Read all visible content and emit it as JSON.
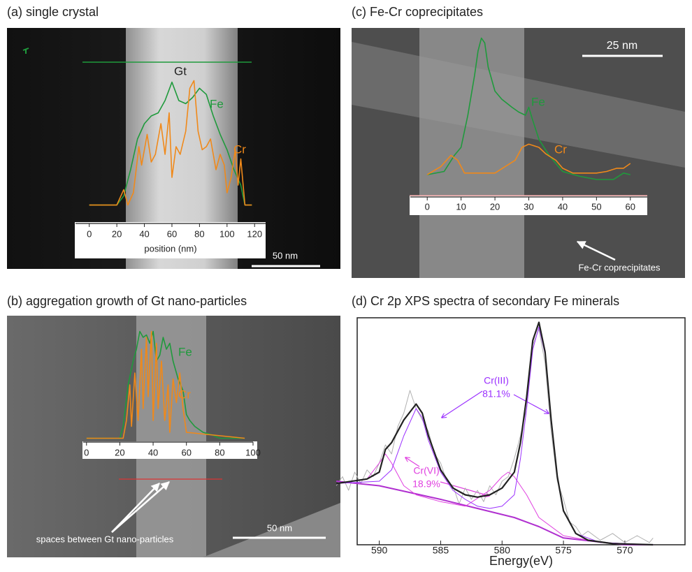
{
  "chart_data": [
    {
      "type": "line",
      "title": "(a) single crystal",
      "x_label": "position (nm)",
      "scale_bar": "50 nm",
      "annotations": [
        "Gt"
      ],
      "xlim": [
        -10,
        128
      ],
      "ylim": [
        0,
        100
      ],
      "xticks": [
        0,
        20,
        40,
        60,
        80,
        100,
        120
      ],
      "series": [
        {
          "name": "Fe",
          "color": "#1f9a3c",
          "x": [
            0,
            20,
            25,
            30,
            35,
            40,
            45,
            50,
            55,
            60,
            65,
            70,
            75,
            80,
            85,
            90,
            95,
            100,
            105,
            110,
            113,
            118
          ],
          "values": [
            12,
            12,
            18,
            35,
            55,
            65,
            70,
            72,
            80,
            92,
            80,
            78,
            82,
            88,
            84,
            70,
            58,
            48,
            35,
            25,
            12,
            12
          ]
        },
        {
          "name": "Cr",
          "color": "#f0891a",
          "x": [
            0,
            20,
            25,
            28,
            32,
            36,
            38,
            42,
            45,
            48,
            52,
            55,
            58,
            60,
            63,
            66,
            70,
            73,
            76,
            79,
            82,
            85,
            88,
            92,
            95,
            98,
            100,
            103,
            106,
            108,
            110,
            113,
            118
          ],
          "values": [
            12,
            12,
            22,
            12,
            20,
            50,
            38,
            58,
            40,
            45,
            65,
            45,
            72,
            30,
            50,
            45,
            60,
            88,
            93,
            60,
            48,
            50,
            55,
            35,
            45,
            38,
            20,
            30,
            48,
            25,
            42,
            12,
            12
          ]
        }
      ]
    },
    {
      "type": "line",
      "title": "(b) aggregation growth of Gt nano-particles",
      "scale_bar": "50 nm",
      "annotations": [
        "spaces between Gt nano-particles"
      ],
      "xlim": [
        -2,
        100
      ],
      "ylim": [
        0,
        100
      ],
      "xticks": [
        0,
        20,
        40,
        60,
        80,
        100
      ],
      "series": [
        {
          "name": "Fe",
          "color": "#1f9a3c",
          "x": [
            0,
            20,
            22,
            25,
            28,
            30,
            32,
            34,
            36,
            38,
            40,
            42,
            44,
            46,
            48,
            50,
            52,
            55,
            58,
            60,
            62,
            65,
            70,
            75,
            80,
            95
          ],
          "values": [
            5,
            5,
            15,
            50,
            70,
            80,
            95,
            90,
            92,
            85,
            95,
            70,
            75,
            90,
            80,
            85,
            70,
            55,
            45,
            25,
            20,
            15,
            10,
            8,
            5,
            5
          ]
        },
        {
          "name": "Cr",
          "color": "#f0891a",
          "x": [
            0,
            22,
            24,
            26,
            27,
            29,
            31,
            33,
            34,
            36,
            37,
            39,
            40,
            42,
            43,
            45,
            47,
            49,
            50,
            52,
            54,
            56,
            58,
            60,
            95
          ],
          "values": [
            5,
            5,
            20,
            50,
            15,
            60,
            20,
            80,
            30,
            90,
            40,
            95,
            20,
            85,
            30,
            70,
            20,
            50,
            10,
            55,
            35,
            60,
            30,
            10,
            5
          ]
        }
      ]
    },
    {
      "type": "line",
      "title": "(c) Fe-Cr coprecipitates",
      "scale_bar": "25 nm",
      "annotations": [
        "Fe-Cr coprecipitates"
      ],
      "xlim": [
        -5,
        65
      ],
      "ylim": [
        0,
        100
      ],
      "xticks": [
        0,
        10,
        20,
        30,
        40,
        50,
        60
      ],
      "series": [
        {
          "name": "Fe",
          "color": "#1f9a3c",
          "x": [
            0,
            5,
            8,
            10,
            12,
            14,
            15,
            16,
            17,
            18,
            20,
            22,
            25,
            27,
            29,
            30,
            31,
            33,
            36,
            40,
            45,
            50,
            55,
            58,
            60
          ],
          "values": [
            13,
            15,
            25,
            30,
            50,
            75,
            90,
            98,
            95,
            80,
            65,
            60,
            55,
            52,
            50,
            55,
            48,
            35,
            25,
            15,
            12,
            10,
            10,
            14,
            13
          ]
        },
        {
          "name": "Cr",
          "color": "#f0891a",
          "x": [
            0,
            4,
            7,
            9,
            11,
            20,
            23,
            26,
            28,
            30,
            33,
            35,
            38,
            40,
            43,
            50,
            53,
            56,
            58,
            60
          ],
          "values": [
            13,
            18,
            25,
            22,
            14,
            14,
            18,
            22,
            30,
            32,
            30,
            26,
            22,
            17,
            14,
            14,
            15,
            17,
            17,
            20
          ]
        }
      ]
    },
    {
      "type": "line",
      "title": "(d) Cr 2p XPS spectra of secondary Fe minerals",
      "x_label": "Energy(eV)",
      "annotations": [
        "Cr(III)",
        "81.1%",
        "Cr(VI)",
        "18.9%"
      ],
      "xlim": [
        591.8,
        565.1
      ],
      "ylim": [
        0,
        100
      ],
      "xticks": [
        590,
        585,
        580,
        575,
        570
      ],
      "series": [
        {
          "color": "#b0b0b0",
          "x": [
            593.5,
            593,
            592.5,
            592,
            591.5,
            591,
            590.5,
            590,
            589.5,
            589,
            588.5,
            588,
            587.5,
            587,
            586.5,
            586,
            585.5,
            585,
            584.5,
            584,
            583.5,
            583,
            582.5,
            582,
            581.5,
            581,
            580.5,
            580,
            579.5,
            579,
            578.5,
            578,
            577.5,
            577,
            576.5,
            576,
            575.5,
            575,
            574.5,
            574,
            573.5,
            573,
            572,
            571,
            570,
            569,
            568,
            567.7
          ],
          "values": [
            26,
            30,
            24,
            32,
            27,
            33,
            30,
            36,
            44,
            40,
            52,
            58,
            68,
            60,
            55,
            50,
            40,
            36,
            28,
            26,
            18,
            25,
            20,
            24,
            19,
            26,
            22,
            28,
            30,
            38,
            48,
            60,
            88,
            95,
            80,
            50,
            28,
            20,
            10,
            8,
            4,
            6,
            2,
            5,
            1,
            4,
            1,
            3
          ]
        },
        {
          "color": "#b030d0",
          "x": [
            593.5,
            590,
            585,
            582,
            579,
            577,
            575,
            570,
            567.7
          ],
          "values": [
            28,
            26,
            20,
            16,
            12,
            8,
            3,
            0,
            0
          ]
        },
        {
          "color": "#e040e0",
          "x": [
            593.5,
            591,
            590,
            589.5,
            589,
            588,
            587,
            585,
            583,
            581,
            580,
            579.5,
            579,
            578,
            577,
            575,
            572,
            567.7
          ],
          "values": [
            27,
            29,
            36,
            40,
            36,
            26,
            22,
            19,
            17,
            24,
            30,
            32,
            30,
            22,
            12,
            4,
            1,
            0
          ]
        },
        {
          "color": "#9b30ff",
          "x": [
            593.5,
            590,
            589,
            588,
            587,
            586.5,
            586,
            585,
            584,
            583,
            582,
            581,
            580,
            579,
            578.5,
            578,
            577.5,
            577,
            576.5,
            576,
            575.5,
            575,
            574,
            572,
            567.7
          ],
          "values": [
            27,
            28,
            33,
            48,
            60,
            56,
            46,
            32,
            24,
            20,
            17,
            16,
            17,
            22,
            38,
            60,
            86,
            96,
            84,
            54,
            30,
            15,
            5,
            1,
            0
          ]
        },
        {
          "color": "#222222",
          "x": [
            593.5,
            591,
            590,
            589.5,
            589,
            588,
            587,
            586.5,
            586,
            585,
            584,
            583,
            582,
            581,
            580,
            579,
            578.5,
            578,
            577.5,
            577,
            576.5,
            576,
            575.5,
            575,
            574,
            573,
            571,
            567.7
          ],
          "values": [
            27,
            29,
            32,
            42,
            45,
            55,
            62,
            58,
            48,
            33,
            25,
            22,
            21,
            22,
            25,
            32,
            45,
            65,
            90,
            98,
            85,
            55,
            30,
            15,
            5,
            2,
            0.5,
            0
          ]
        }
      ]
    }
  ]
}
